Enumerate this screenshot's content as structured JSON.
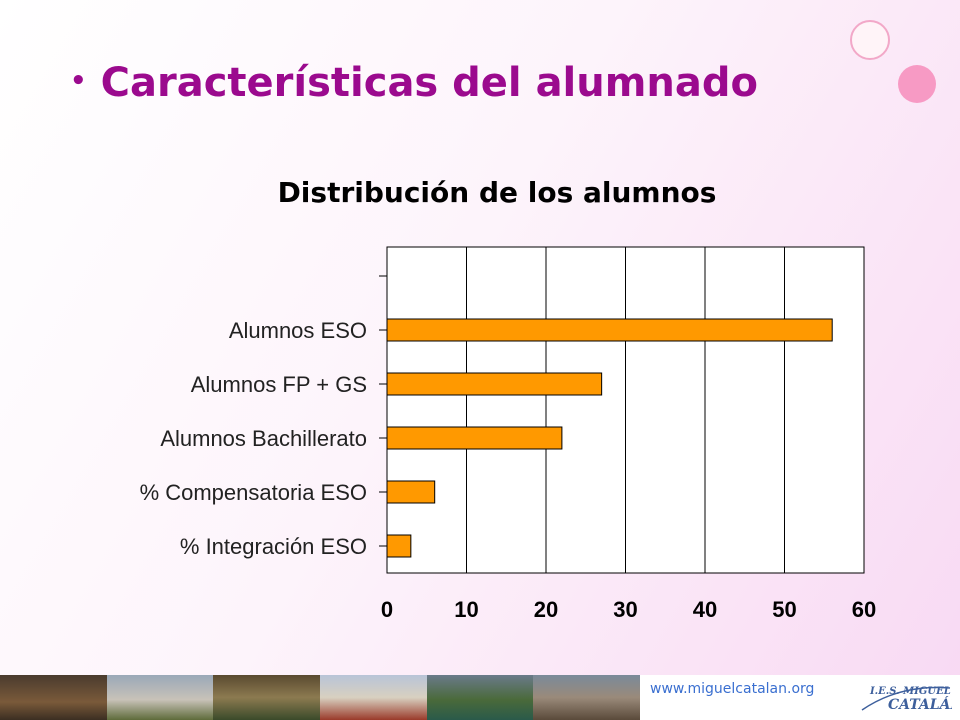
{
  "slide": {
    "title": "Características del alumnado",
    "footer_url": "www.miguelcatalan.org",
    "logo_line1": "I.E.S. MIGUEL",
    "logo_line2": "CATALÁN"
  },
  "colors": {
    "title": "#9b0a8e",
    "bar_fill": "#ff9900",
    "bar_stroke": "#000000",
    "plot_bg": "#ffffff",
    "grid": "#000000"
  },
  "chart_data": {
    "type": "bar",
    "orientation": "horizontal",
    "title": "Distribución de los alumnos",
    "categories": [
      "Alumnos ESO",
      "Alumnos FP + GS",
      "Alumnos Bachillerato",
      "% Compensatoria ESO",
      "% Integración ESO"
    ],
    "values": [
      56,
      27,
      22,
      6,
      3
    ],
    "xlim": [
      0,
      60
    ],
    "xticks": [
      0,
      10,
      20,
      30,
      40,
      50,
      60
    ],
    "xlabel": "",
    "ylabel": "",
    "grid": true,
    "legend": "none"
  }
}
